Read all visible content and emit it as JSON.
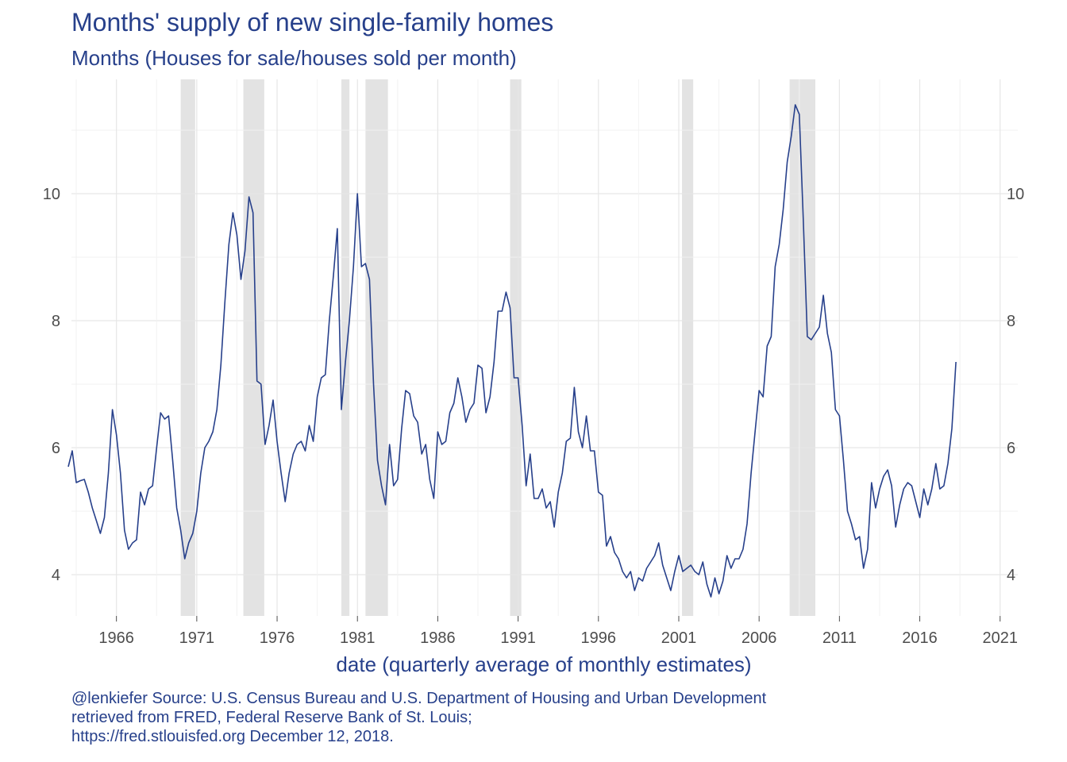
{
  "chart_data": {
    "type": "line",
    "title": "Months' supply of new single-family homes",
    "subtitle": "Months (Houses for sale/houses sold per month)",
    "xlabel": "date (quarterly average of monthly estimates)",
    "ylabel": "",
    "caption": [
      "@lenkiefer Source: U.S. Census Bureau and U.S. Department of Housing and Urban Development",
      "retrieved from FRED, Federal Reserve Bank of St. Louis;",
      "https://fred.stlouisfed.org December 12, 2018."
    ],
    "xlim": [
      1963.2,
      2022.1
    ],
    "ylim": [
      3.35,
      11.8
    ],
    "x_ticks": [
      1966,
      1971,
      1976,
      1981,
      1986,
      1991,
      1996,
      2001,
      2006,
      2011,
      2016,
      2021
    ],
    "y_ticks": [
      4,
      6,
      8,
      10
    ],
    "y_axis_both_sides": true,
    "grid": true,
    "line_color": "#27408B",
    "recession_color": "#e3e3e3",
    "recessions": [
      [
        1970.0,
        1970.9
      ],
      [
        1973.9,
        1975.2
      ],
      [
        1980.0,
        1980.5
      ],
      [
        1981.5,
        1982.9
      ],
      [
        1990.5,
        1991.2
      ],
      [
        2001.2,
        2001.9
      ],
      [
        2007.9,
        2009.5
      ]
    ],
    "series": [
      {
        "start": 1963.0,
        "step": 0.25,
        "values": [
          5.7,
          5.95,
          5.45,
          5.48,
          5.5,
          5.3,
          5.05,
          4.85,
          4.65,
          4.9,
          5.6,
          6.6,
          6.2,
          5.6,
          4.7,
          4.4,
          4.5,
          4.55,
          5.3,
          5.1,
          5.35,
          5.4,
          6.0,
          6.55,
          6.45,
          6.5,
          5.8,
          5.05,
          4.7,
          4.25,
          4.5,
          4.65,
          5.0,
          5.6,
          6.0,
          6.1,
          6.25,
          6.6,
          7.3,
          8.3,
          9.2,
          9.7,
          9.35,
          8.65,
          9.1,
          9.95,
          9.7,
          7.05,
          7.0,
          6.05,
          6.35,
          6.75,
          6.1,
          5.6,
          5.15,
          5.6,
          5.9,
          6.05,
          6.1,
          5.95,
          6.35,
          6.1,
          6.8,
          7.1,
          7.15,
          8.0,
          8.7,
          9.45,
          6.6,
          7.35,
          8.0,
          8.85,
          10.0,
          8.85,
          8.9,
          8.65,
          7.0,
          5.8,
          5.4,
          5.1,
          6.05,
          5.4,
          5.5,
          6.3,
          6.9,
          6.85,
          6.5,
          6.4,
          5.9,
          6.05,
          5.5,
          5.2,
          6.25,
          6.05,
          6.1,
          6.55,
          6.7,
          7.1,
          6.8,
          6.4,
          6.6,
          6.7,
          7.3,
          7.25,
          6.55,
          6.8,
          7.35,
          8.15,
          8.15,
          8.45,
          8.2,
          7.1,
          7.1,
          6.35,
          5.4,
          5.9,
          5.2,
          5.2,
          5.35,
          5.05,
          5.15,
          4.75,
          5.3,
          5.6,
          6.1,
          6.15,
          6.95,
          6.25,
          6.0,
          6.5,
          5.95,
          5.95,
          5.3,
          5.25,
          4.45,
          4.6,
          4.35,
          4.25,
          4.05,
          3.95,
          4.05,
          3.75,
          3.95,
          3.9,
          4.1,
          4.2,
          4.3,
          4.5,
          4.15,
          3.95,
          3.75,
          4.05,
          4.3,
          4.05,
          4.1,
          4.15,
          4.05,
          4.0,
          4.2,
          3.85,
          3.65,
          3.95,
          3.7,
          3.9,
          4.3,
          4.1,
          4.25,
          4.25,
          4.4,
          4.8,
          5.6,
          6.25,
          6.9,
          6.8,
          7.6,
          7.75,
          8.85,
          9.2,
          9.75,
          10.5,
          10.9,
          11.4,
          11.25,
          9.6,
          7.75,
          7.7,
          7.8,
          7.9,
          8.4,
          7.8,
          7.5,
          6.6,
          6.5,
          5.8,
          5.0,
          4.8,
          4.55,
          4.6,
          4.1,
          4.4,
          5.45,
          5.05,
          5.35,
          5.55,
          5.65,
          5.4,
          4.75,
          5.1,
          5.35,
          5.45,
          5.4,
          5.15,
          4.9,
          5.35,
          5.1,
          5.35,
          5.75,
          5.35,
          5.4,
          5.75,
          6.3,
          7.35
        ]
      }
    ]
  }
}
